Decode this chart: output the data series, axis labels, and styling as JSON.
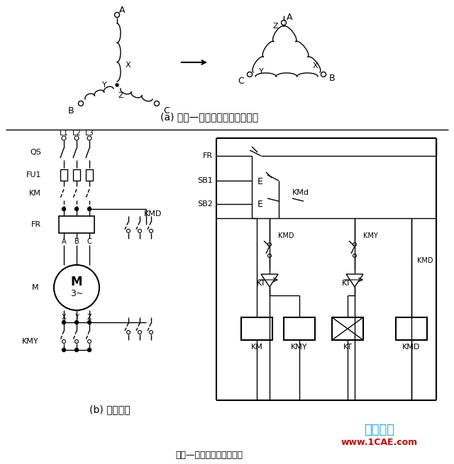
{
  "subtitle_a": "(a) 星形—三角形转换绕组连接图",
  "subtitle_b": "(b) 控制线路",
  "bottom_text": "星形—三角形自动控制线路",
  "watermark1": "仿真在线",
  "watermark2": "www.1CAE.com",
  "wc1": "#00aaff",
  "wc2": "#cc0000",
  "bg": "#ffffff",
  "lc": "#000000",
  "dpi": 100,
  "fw": 6.4,
  "fh": 6.55
}
